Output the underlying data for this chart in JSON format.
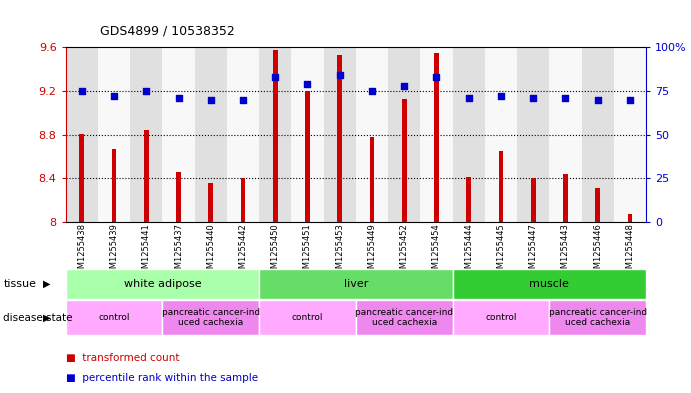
{
  "title": "GDS4899 / 10538352",
  "samples": [
    "GSM1255438",
    "GSM1255439",
    "GSM1255441",
    "GSM1255437",
    "GSM1255440",
    "GSM1255442",
    "GSM1255450",
    "GSM1255451",
    "GSM1255453",
    "GSM1255449",
    "GSM1255452",
    "GSM1255454",
    "GSM1255444",
    "GSM1255445",
    "GSM1255447",
    "GSM1255443",
    "GSM1255446",
    "GSM1255448"
  ],
  "bar_values": [
    8.81,
    8.67,
    8.84,
    8.46,
    8.36,
    8.4,
    9.57,
    9.2,
    9.53,
    8.78,
    9.13,
    9.55,
    8.41,
    8.65,
    8.4,
    8.44,
    8.31,
    8.07
  ],
  "dot_values": [
    75,
    72,
    75,
    71,
    70,
    70,
    83,
    79,
    84,
    75,
    78,
    83,
    71,
    72,
    71,
    71,
    70,
    70
  ],
  "bar_color": "#cc0000",
  "dot_color": "#0000cc",
  "ylim_left": [
    8.0,
    9.6
  ],
  "ylim_right": [
    0,
    100
  ],
  "yticks_left": [
    8.0,
    8.4,
    8.8,
    9.2,
    9.6
  ],
  "ytick_labels_left": [
    "8",
    "8.4",
    "8.8",
    "9.2",
    "9.6"
  ],
  "yticks_right": [
    0,
    25,
    50,
    75,
    100
  ],
  "ytick_labels_right": [
    "0",
    "25",
    "50",
    "75",
    "100%"
  ],
  "hlines": [
    8.4,
    8.8,
    9.2
  ],
  "tissue_groups": [
    {
      "label": "white adipose",
      "start": 0,
      "end": 6,
      "color": "#aaffaa"
    },
    {
      "label": "liver",
      "start": 6,
      "end": 12,
      "color": "#66dd66"
    },
    {
      "label": "muscle",
      "start": 12,
      "end": 18,
      "color": "#33cc33"
    }
  ],
  "disease_groups": [
    {
      "label": "control",
      "start": 0,
      "end": 3,
      "color": "#ffaaff"
    },
    {
      "label": "pancreatic cancer-ind\nuced cachexia",
      "start": 3,
      "end": 6,
      "color": "#ee88ee"
    },
    {
      "label": "control",
      "start": 6,
      "end": 9,
      "color": "#ffaaff"
    },
    {
      "label": "pancreatic cancer-ind\nuced cachexia",
      "start": 9,
      "end": 12,
      "color": "#ee88ee"
    },
    {
      "label": "control",
      "start": 12,
      "end": 15,
      "color": "#ffaaff"
    },
    {
      "label": "pancreatic cancer-ind\nuced cachexia",
      "start": 15,
      "end": 18,
      "color": "#ee88ee"
    }
  ],
  "col_bg_colors": [
    "#e0e0e0",
    "#f8f8f8"
  ],
  "legend_items": [
    {
      "label": "transformed count",
      "color": "#cc0000"
    },
    {
      "label": "percentile rank within the sample",
      "color": "#0000cc"
    }
  ]
}
